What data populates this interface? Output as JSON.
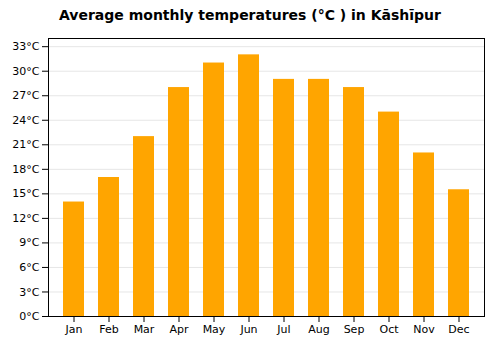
{
  "chart_data": {
    "type": "bar",
    "title": "Average monthly temperatures (°C ) in Kāshīpur",
    "categories": [
      "Jan",
      "Feb",
      "Mar",
      "Apr",
      "May",
      "Jun",
      "Jul",
      "Aug",
      "Sep",
      "Oct",
      "Nov",
      "Dec"
    ],
    "values": [
      14,
      17,
      22,
      28,
      31,
      32,
      29,
      29,
      28,
      25,
      20,
      15.5
    ],
    "color": "#FFA500",
    "ylim": [
      0,
      34
    ],
    "yticks": [
      {
        "value": 0,
        "label": "0°C"
      },
      {
        "value": 3,
        "label": "3°C"
      },
      {
        "value": 6,
        "label": "6°C"
      },
      {
        "value": 9,
        "label": "9°C"
      },
      {
        "value": 12,
        "label": "12°C"
      },
      {
        "value": 15,
        "label": "15°C"
      },
      {
        "value": 18,
        "label": "18°C"
      },
      {
        "value": 21,
        "label": "21°C"
      },
      {
        "value": 24,
        "label": "24°C"
      },
      {
        "value": 27,
        "label": "27°C"
      },
      {
        "value": 30,
        "label": "30°C"
      },
      {
        "value": 33,
        "label": "33°C"
      }
    ],
    "grid": true
  }
}
